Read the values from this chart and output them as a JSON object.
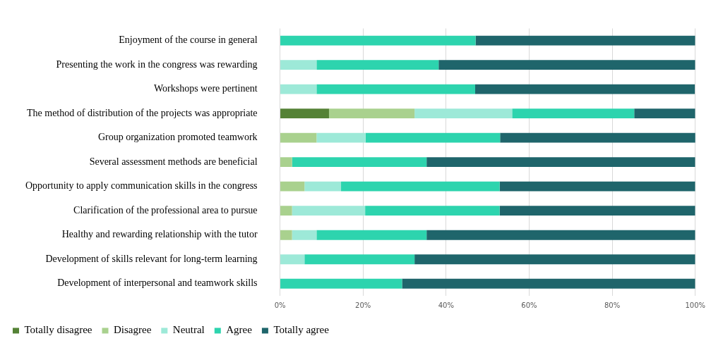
{
  "chart_data": {
    "type": "bar",
    "orientation": "horizontal",
    "stacked": true,
    "categories": [
      "Enjoyment of the course in general",
      "Presenting the work in the congress was rewarding",
      "Workshops were pertinent",
      "The method of distribution of the projects was appropriate",
      "Group organization promoted teamwork",
      "Several assessment methods are beneficial",
      "Opportunity to apply communication skills in the congress",
      "Clarification of the professional area to pursue",
      "Healthy and rewarding relationship with the tutor",
      "Development of skills relevant for long-term learning",
      "Development of interpersonal and teamwork skills"
    ],
    "series": [
      {
        "name": "Totally disagree",
        "color": "#548235",
        "values": [
          0,
          0,
          0,
          11.8,
          0,
          0,
          0,
          0,
          0,
          0,
          0
        ]
      },
      {
        "name": "Disagree",
        "color": "#a9d18e",
        "values": [
          0,
          0,
          0,
          20.6,
          8.8,
          2.9,
          5.9,
          2.9,
          2.9,
          0,
          0
        ]
      },
      {
        "name": "Neutral",
        "color": "#9de9d8",
        "values": [
          0,
          8.8,
          8.8,
          23.5,
          11.8,
          0,
          8.8,
          17.6,
          5.9,
          5.9,
          0
        ]
      },
      {
        "name": "Agree",
        "color": "#2dd4ae",
        "values": [
          47.1,
          29.4,
          38.2,
          29.4,
          32.4,
          32.4,
          38.2,
          32.4,
          26.5,
          26.5,
          29.4
        ]
      },
      {
        "name": "Totally agree",
        "color": "#1f656b",
        "values": [
          52.9,
          61.8,
          52.9,
          14.7,
          47.1,
          64.7,
          47.1,
          47.1,
          64.7,
          67.6,
          70.6
        ]
      }
    ],
    "xlim": [
      0,
      100
    ],
    "xticks": [
      {
        "value": 0,
        "label": "0%"
      },
      {
        "value": 20,
        "label": "20%"
      },
      {
        "value": 40,
        "label": "40%"
      },
      {
        "value": 60,
        "label": "60%"
      },
      {
        "value": 80,
        "label": "80%"
      },
      {
        "value": 100,
        "label": "100%"
      }
    ],
    "grid": "x",
    "legend": "bottom",
    "marker": "square"
  }
}
